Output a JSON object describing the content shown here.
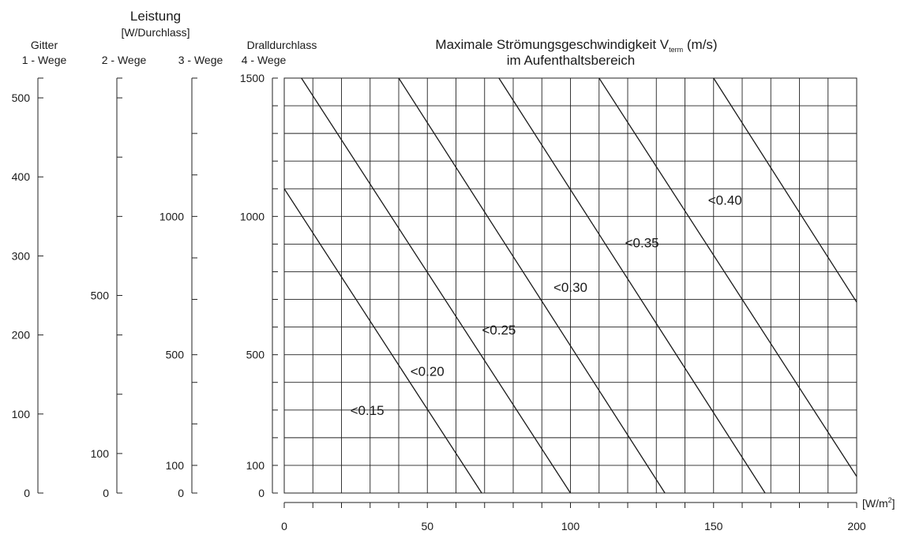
{
  "chart_data": {
    "type": "line",
    "title": "Maximale Strömungsgeschwindigkeit V",
    "title_subscript": "term",
    "title_unit": " (m/s)",
    "subtitle": "im Aufenthaltsbereich",
    "side_title": "Leistung",
    "side_unit": "[W/Durchlass]",
    "group_grille": "Gitter",
    "group_swirl": "Dralldurchlass",
    "xlabel": "[W/m",
    "xlabel_sup": "2",
    "xlabel_close": "]",
    "xlim": [
      0,
      200
    ],
    "x_ticks": [
      0,
      50,
      100,
      150,
      200
    ],
    "ylim": [
      0,
      1500
    ],
    "grid": true,
    "axes": [
      {
        "label": "1 - Wege",
        "max": 525,
        "major_ticks": [
          0,
          100,
          200,
          300,
          400,
          500
        ],
        "labeled_ticks": [
          0,
          100,
          200,
          300,
          400,
          500
        ]
      },
      {
        "label": "2 - Wege",
        "max": 1050,
        "major_ticks": [
          0,
          100,
          250,
          400,
          500,
          700,
          850,
          1000
        ],
        "labeled_ticks": [
          0,
          100,
          500
        ]
      },
      {
        "label": "3 - Wege",
        "max": 1500,
        "major_ticks": [
          0,
          100,
          250,
          400,
          500,
          700,
          850,
          1000,
          1150,
          1300
        ],
        "labeled_ticks": [
          0,
          100,
          500,
          1000
        ]
      },
      {
        "label": "4 - Wege",
        "max": 1500,
        "major_ticks": [
          0,
          100,
          200,
          300,
          400,
          500,
          600,
          700,
          800,
          900,
          1000,
          1100,
          1200,
          1300,
          1400,
          1500
        ],
        "labeled_ticks": [
          0,
          100,
          500,
          1000,
          1500
        ]
      }
    ],
    "series": [
      {
        "name": "<0.15",
        "x": [
          0,
          69
        ],
        "y": [
          1100,
          0
        ],
        "label_at": [
          29,
          300
        ]
      },
      {
        "name": "<0.20",
        "x": [
          6,
          100
        ],
        "y": [
          1500,
          0
        ],
        "label_at": [
          50,
          440
        ]
      },
      {
        "name": "<0.25",
        "x": [
          40,
          133
        ],
        "y": [
          1500,
          0
        ],
        "label_at": [
          75,
          590
        ]
      },
      {
        "name": "<0.30",
        "x": [
          75,
          168
        ],
        "y": [
          1500,
          0
        ],
        "label_at": [
          100,
          745
        ]
      },
      {
        "name": "<0.35",
        "x": [
          110,
          200
        ],
        "y": [
          1500,
          60
        ],
        "label_at": [
          125,
          905
        ]
      },
      {
        "name": "<0.40",
        "x": [
          150,
          200
        ],
        "y": [
          1500,
          690
        ],
        "label_at": [
          154,
          1060
        ]
      }
    ]
  }
}
